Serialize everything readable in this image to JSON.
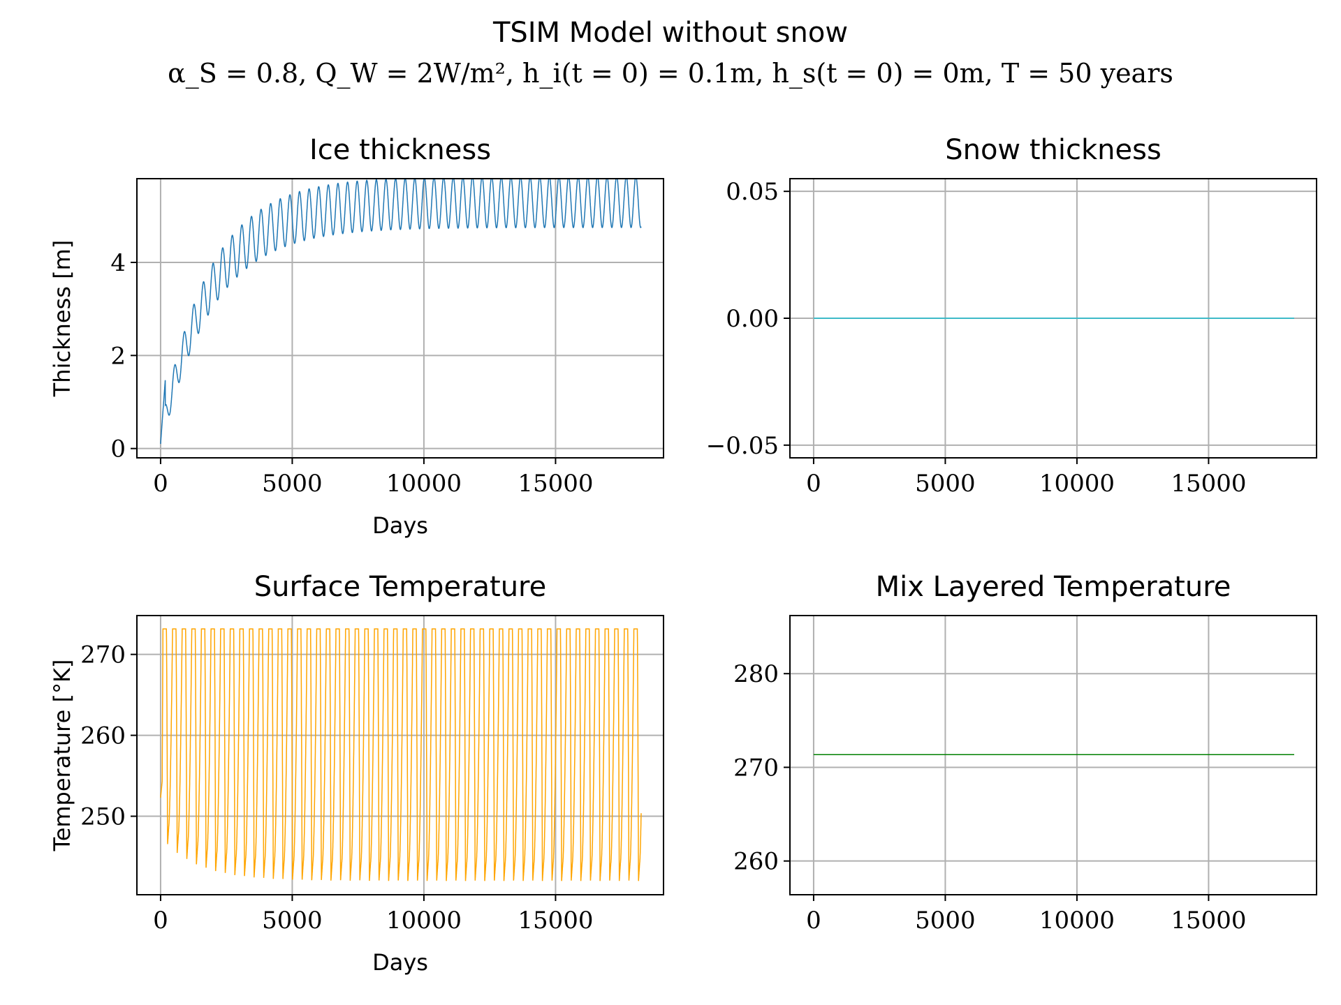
{
  "figure": {
    "title": "TSIM Model without snow",
    "subtitle": "α_S = 0.8, Q_W = 2W/m², h_i(t = 0) = 0.1m, h_s(t = 0) = 0m, T = 50 years"
  },
  "chart_data": [
    {
      "type": "line",
      "title": "Ice thickness",
      "xlabel": "Days",
      "ylabel": "Thickness [m]",
      "xlim": [
        -900,
        19100
      ],
      "ylim": [
        -0.2,
        5.8
      ],
      "xticks": [
        0,
        5000,
        10000,
        15000
      ],
      "yticks": [
        0,
        2,
        4
      ],
      "ytick_labels": [
        "0",
        "2",
        "4"
      ],
      "grid": true,
      "series": [
        {
          "color": "#1f77b4",
          "x_range": [
            0,
            18250
          ],
          "period_days": 365,
          "initial": 0.1,
          "approx_max_annual_peak": 5.55,
          "approx_max_annual_min": 5.05,
          "x": [
            0,
            180,
            270,
            545,
            635,
            910,
            1000,
            1275,
            1365,
            2740,
            2830,
            5480,
            5570,
            9860,
            9950,
            18070,
            18250
          ],
          "y": [
            0.1,
            1.5,
            1.0,
            2.5,
            2.0,
            3.1,
            2.6,
            3.5,
            3.0,
            4.6,
            4.1,
            5.3,
            4.8,
            5.5,
            5.0,
            5.55,
            5.3
          ]
        }
      ]
    },
    {
      "type": "line",
      "title": "Snow thickness",
      "xlabel": "",
      "ylabel": "",
      "xlim": [
        -900,
        19100
      ],
      "ylim": [
        -0.055,
        0.055
      ],
      "xticks": [
        0,
        5000,
        10000,
        15000
      ],
      "yticks": [
        -0.05,
        0,
        0.05
      ],
      "ytick_labels": [
        "−0.05",
        "0.00",
        "0.05"
      ],
      "grid": true,
      "series": [
        {
          "color": "#17becf",
          "x": [
            0,
            18250
          ],
          "y": [
            0,
            0
          ]
        }
      ]
    },
    {
      "type": "line",
      "title": "Surface Temperature",
      "xlabel": "Days",
      "ylabel": "Temperature [°K]",
      "xlim": [
        -900,
        19100
      ],
      "ylim": [
        240.3,
        274.8
      ],
      "xticks": [
        0,
        5000,
        10000,
        15000
      ],
      "yticks": [
        250,
        260,
        270
      ],
      "ytick_labels": [
        "250",
        "260",
        "270"
      ],
      "grid": true,
      "series": [
        {
          "color": "#ffa500",
          "x_range": [
            0,
            18250
          ],
          "period_days": 365,
          "initial": 252.3,
          "summer_max": 273.15,
          "winter_min_first": 246.8,
          "winter_min_late": 242.0,
          "x": [
            0,
            365,
            730,
            1825,
            3650,
            5475,
            18250
          ],
          "y": [
            252.3,
            246.8,
            245.0,
            243.6,
            242.6,
            242.2,
            242.0
          ]
        }
      ]
    },
    {
      "type": "line",
      "title": "Mix Layered Temperature",
      "xlabel": "",
      "ylabel": "",
      "xlim": [
        -900,
        19100
      ],
      "ylim": [
        256.4,
        286.2
      ],
      "xticks": [
        0,
        5000,
        10000,
        15000
      ],
      "yticks": [
        260,
        270,
        280
      ],
      "ytick_labels": [
        "260",
        "270",
        "280"
      ],
      "grid": true,
      "series": [
        {
          "color": "#008000",
          "x": [
            0,
            18250
          ],
          "y": [
            271.35,
            271.35
          ]
        }
      ]
    }
  ]
}
